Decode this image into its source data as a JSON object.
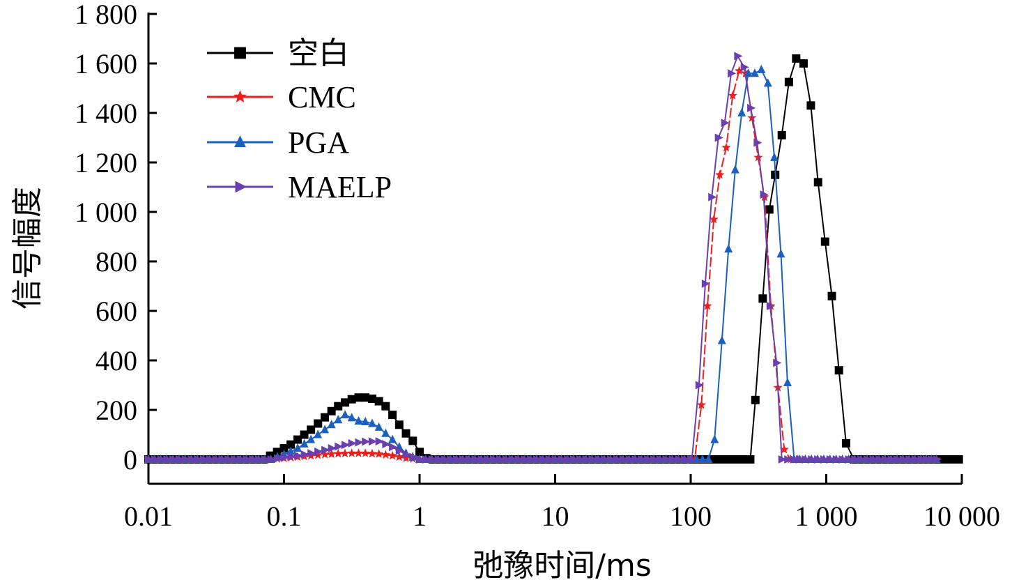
{
  "chart_data": {
    "type": "line",
    "xscale": "log",
    "xlim": [
      0.01,
      10000
    ],
    "ylim": [
      -100,
      1800
    ],
    "xlabel": "弛豫时间/ms",
    "ylabel": "信号幅度",
    "x_ticks": [
      0.01,
      0.1,
      1,
      10,
      100,
      1000,
      10000
    ],
    "x_tick_labels": [
      "0.01",
      "0.1",
      "1",
      "10",
      "100",
      "1 000",
      "10 000"
    ],
    "y_ticks": [
      0,
      200,
      400,
      600,
      800,
      1000,
      1200,
      1400,
      1600,
      1800
    ],
    "y_tick_labels": [
      "0",
      "200",
      "400",
      "600",
      "800",
      "1 000",
      "1 200",
      "1 400",
      "1 600",
      "1 800"
    ],
    "legend_position": "top-left",
    "grid": false,
    "series": [
      {
        "name": "空白",
        "color": "#000000",
        "marker": "square",
        "points": [
          [
            0.01,
            0
          ],
          [
            0.07,
            0
          ],
          [
            0.079,
            15
          ],
          [
            0.089,
            30
          ],
          [
            0.1,
            45
          ],
          [
            0.112,
            60
          ],
          [
            0.126,
            80
          ],
          [
            0.141,
            100
          ],
          [
            0.158,
            120
          ],
          [
            0.178,
            145
          ],
          [
            0.2,
            170
          ],
          [
            0.224,
            195
          ],
          [
            0.251,
            215
          ],
          [
            0.282,
            230
          ],
          [
            0.316,
            243
          ],
          [
            0.355,
            250
          ],
          [
            0.398,
            250
          ],
          [
            0.447,
            245
          ],
          [
            0.501,
            235
          ],
          [
            0.562,
            215
          ],
          [
            0.631,
            180
          ],
          [
            0.708,
            140
          ],
          [
            0.794,
            105
          ],
          [
            0.891,
            75
          ],
          [
            1.0,
            30
          ],
          [
            1.12,
            5
          ],
          [
            1.26,
            0
          ],
          [
            10,
            0
          ],
          [
            100,
            0
          ],
          [
            200,
            0
          ],
          [
            250,
            0
          ],
          [
            275,
            0
          ],
          [
            300,
            240
          ],
          [
            340,
            650
          ],
          [
            380,
            1010
          ],
          [
            420,
            1150
          ],
          [
            470,
            1310
          ],
          [
            530,
            1525
          ],
          [
            600,
            1620
          ],
          [
            680,
            1600
          ],
          [
            770,
            1430
          ],
          [
            870,
            1120
          ],
          [
            980,
            880
          ],
          [
            1100,
            660
          ],
          [
            1240,
            360
          ],
          [
            1400,
            65
          ],
          [
            1600,
            0
          ],
          [
            2500,
            0
          ],
          [
            5000,
            0
          ],
          [
            8000,
            0
          ],
          [
            9500,
            0
          ]
        ]
      },
      {
        "name": "CMC",
        "color": "#e8201e",
        "marker": "star",
        "points": [
          [
            0.01,
            0
          ],
          [
            0.08,
            0
          ],
          [
            0.1,
            5
          ],
          [
            0.126,
            10
          ],
          [
            0.158,
            15
          ],
          [
            0.2,
            20
          ],
          [
            0.251,
            23
          ],
          [
            0.316,
            25
          ],
          [
            0.398,
            25
          ],
          [
            0.501,
            22
          ],
          [
            0.631,
            15
          ],
          [
            0.794,
            5
          ],
          [
            1.0,
            0
          ],
          [
            10,
            0
          ],
          [
            100,
            0
          ],
          [
            107,
            0
          ],
          [
            120,
            220
          ],
          [
            133,
            620
          ],
          [
            148,
            970
          ],
          [
            164,
            1150
          ],
          [
            183,
            1260
          ],
          [
            204,
            1470
          ],
          [
            228,
            1570
          ],
          [
            254,
            1560
          ],
          [
            283,
            1380
          ],
          [
            315,
            1220
          ],
          [
            350,
            1060
          ],
          [
            390,
            620
          ],
          [
            440,
            290
          ],
          [
            490,
            40
          ],
          [
            545,
            0
          ],
          [
            700,
            0
          ],
          [
            2000,
            0
          ],
          [
            5000,
            0
          ],
          [
            6500,
            0
          ]
        ]
      },
      {
        "name": "PGA",
        "color": "#1b5fbf",
        "marker": "triangle-up",
        "points": [
          [
            0.01,
            0
          ],
          [
            0.08,
            0
          ],
          [
            0.1,
            20
          ],
          [
            0.126,
            45
          ],
          [
            0.158,
            80
          ],
          [
            0.2,
            120
          ],
          [
            0.251,
            160
          ],
          [
            0.282,
            180
          ],
          [
            0.316,
            168
          ],
          [
            0.355,
            155
          ],
          [
            0.398,
            152
          ],
          [
            0.447,
            145
          ],
          [
            0.501,
            130
          ],
          [
            0.562,
            105
          ],
          [
            0.631,
            80
          ],
          [
            0.708,
            50
          ],
          [
            0.794,
            25
          ],
          [
            0.891,
            10
          ],
          [
            1.0,
            0
          ],
          [
            10,
            0
          ],
          [
            100,
            0
          ],
          [
            135,
            0
          ],
          [
            150,
            80
          ],
          [
            170,
            480
          ],
          [
            190,
            850
          ],
          [
            213,
            1170
          ],
          [
            238,
            1400
          ],
          [
            266,
            1560
          ],
          [
            297,
            1560
          ],
          [
            332,
            1575
          ],
          [
            371,
            1520
          ],
          [
            414,
            1220
          ],
          [
            463,
            830
          ],
          [
            518,
            310
          ],
          [
            580,
            0
          ],
          [
            700,
            0
          ],
          [
            2000,
            0
          ],
          [
            5000,
            0
          ],
          [
            6500,
            0
          ]
        ]
      },
      {
        "name": "MAELP",
        "color": "#6a3fb0",
        "marker": "triangle-right",
        "points": [
          [
            0.01,
            0
          ],
          [
            0.08,
            0
          ],
          [
            0.1,
            8
          ],
          [
            0.126,
            15
          ],
          [
            0.158,
            25
          ],
          [
            0.2,
            38
          ],
          [
            0.251,
            52
          ],
          [
            0.316,
            65
          ],
          [
            0.398,
            72
          ],
          [
            0.501,
            73
          ],
          [
            0.631,
            50
          ],
          [
            0.794,
            20
          ],
          [
            1.0,
            0
          ],
          [
            10,
            0
          ],
          [
            100,
            0
          ],
          [
            102,
            0
          ],
          [
            115,
            300
          ],
          [
            128,
            710
          ],
          [
            143,
            1060
          ],
          [
            160,
            1300
          ],
          [
            178,
            1360
          ],
          [
            199,
            1560
          ],
          [
            222,
            1630
          ],
          [
            248,
            1585
          ],
          [
            277,
            1420
          ],
          [
            309,
            1280
          ],
          [
            345,
            1070
          ],
          [
            385,
            620
          ],
          [
            430,
            390
          ],
          [
            470,
            0
          ],
          [
            520,
            0
          ],
          [
            700,
            0
          ],
          [
            2000,
            0
          ],
          [
            5000,
            0
          ],
          [
            6500,
            0
          ]
        ]
      }
    ]
  }
}
